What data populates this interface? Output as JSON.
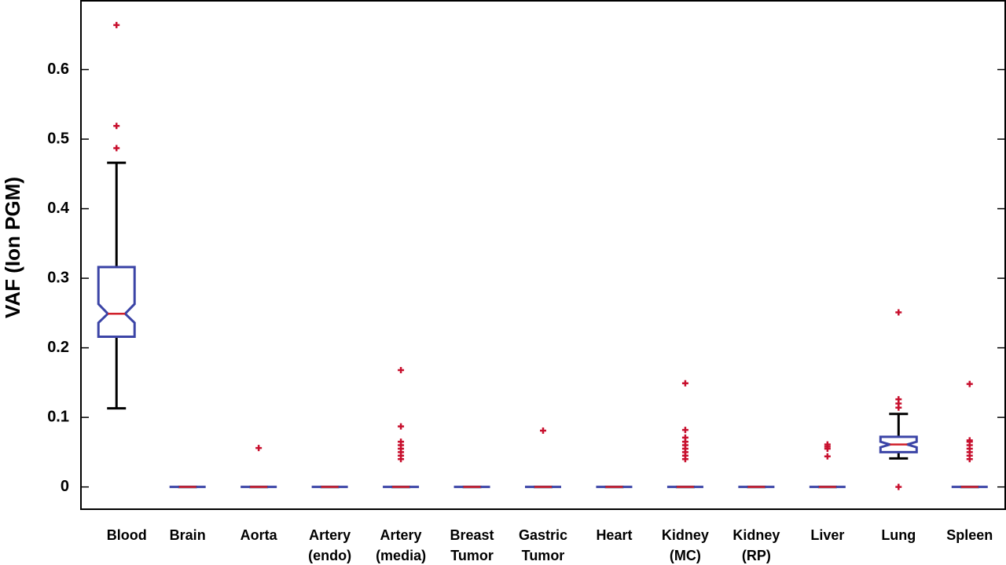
{
  "chart_data": {
    "type": "box",
    "y_label": "VAF (Ion PGM)",
    "categories": [
      [
        "Blood"
      ],
      [
        "Brain"
      ],
      [
        "Aorta"
      ],
      [
        "Artery",
        "(endo)"
      ],
      [
        "Artery",
        "(media)"
      ],
      [
        "Breast",
        "Tumor"
      ],
      [
        "Gastric",
        "Tumor"
      ],
      [
        "Heart"
      ],
      [
        "Kidney",
        "(MC)"
      ],
      [
        "Kidney",
        "(RP)"
      ],
      [
        "Liver"
      ],
      [
        "Lung"
      ],
      [
        "Spleen"
      ]
    ],
    "boxes": [
      {
        "whisker_low": 0.113,
        "q1": 0.216,
        "median": 0.249,
        "q3": 0.316,
        "whisker_high": 0.466,
        "notch_low": 0.236,
        "notch_high": 0.263,
        "outliers": [
          0.664,
          0.519,
          0.487
        ]
      },
      {
        "whisker_low": 0,
        "q1": 0,
        "median": 0,
        "q3": 0,
        "whisker_high": 0,
        "notch_low": 0,
        "notch_high": 0,
        "outliers": []
      },
      {
        "whisker_low": 0,
        "q1": 0,
        "median": 0,
        "q3": 0,
        "whisker_high": 0,
        "notch_low": 0,
        "notch_high": 0,
        "outliers": [
          0.056
        ]
      },
      {
        "whisker_low": 0,
        "q1": 0,
        "median": 0,
        "q3": 0,
        "whisker_high": 0,
        "notch_low": 0,
        "notch_high": 0,
        "outliers": []
      },
      {
        "whisker_low": 0,
        "q1": 0,
        "median": 0,
        "q3": 0,
        "whisker_high": 0,
        "notch_low": 0,
        "notch_high": 0,
        "outliers": [
          0.168,
          0.087,
          0.065,
          0.06,
          0.055,
          0.05,
          0.045,
          0.04
        ]
      },
      {
        "whisker_low": 0,
        "q1": 0,
        "median": 0,
        "q3": 0,
        "whisker_high": 0,
        "notch_low": 0,
        "notch_high": 0,
        "outliers": []
      },
      {
        "whisker_low": 0,
        "q1": 0,
        "median": 0,
        "q3": 0,
        "whisker_high": 0,
        "notch_low": 0,
        "notch_high": 0,
        "outliers": [
          0.081
        ]
      },
      {
        "whisker_low": 0,
        "q1": 0,
        "median": 0,
        "q3": 0,
        "whisker_high": 0,
        "notch_low": 0,
        "notch_high": 0,
        "outliers": []
      },
      {
        "whisker_low": 0,
        "q1": 0,
        "median": 0,
        "q3": 0,
        "whisker_high": 0,
        "notch_low": 0,
        "notch_high": 0,
        "outliers": [
          0.149,
          0.082,
          0.071,
          0.065,
          0.06,
          0.055,
          0.05,
          0.045,
          0.04
        ]
      },
      {
        "whisker_low": 0,
        "q1": 0,
        "median": 0,
        "q3": 0,
        "whisker_high": 0,
        "notch_low": 0,
        "notch_high": 0,
        "outliers": []
      },
      {
        "whisker_low": 0,
        "q1": 0,
        "median": 0,
        "q3": 0,
        "whisker_high": 0,
        "notch_low": 0,
        "notch_high": 0,
        "outliers": [
          0.061,
          0.058,
          0.055,
          0.044
        ]
      },
      {
        "whisker_low": 0.041,
        "q1": 0.05,
        "median": 0.061,
        "q3": 0.072,
        "whisker_high": 0.105,
        "notch_low": 0.057,
        "notch_high": 0.065,
        "outliers": [
          0.251,
          0.126,
          0.12,
          0.114,
          0
        ]
      },
      {
        "whisker_low": 0,
        "q1": 0,
        "median": 0,
        "q3": 0,
        "whisker_high": 0,
        "notch_low": 0,
        "notch_high": 0,
        "outliers": [
          0.148,
          0.067,
          0.065,
          0.06,
          0.055,
          0.05,
          0.045,
          0.04
        ]
      }
    ],
    "box_color": "#3b44a6",
    "median_color": "#d0202a",
    "whisker_color": "#000000",
    "outlier_color": "#c8102e",
    "ylim": [
      -0.032,
      0.7
    ],
    "yticks": [
      0,
      0.1,
      0.2,
      0.3,
      0.4,
      0.5,
      0.6
    ]
  }
}
